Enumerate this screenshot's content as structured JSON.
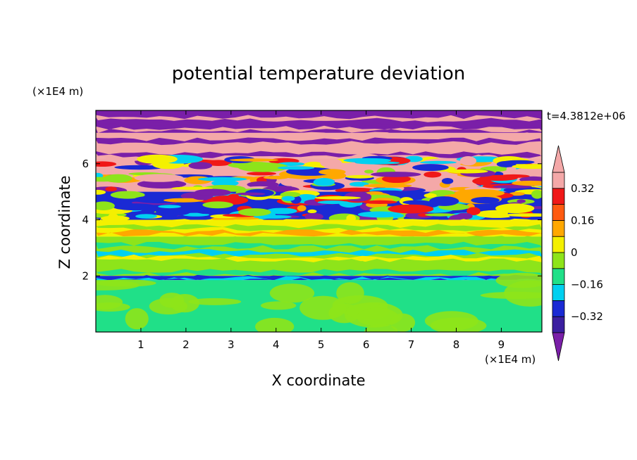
{
  "chart_data": {
    "type": "heatmap",
    "title": "potential temperature deviation",
    "xlabel": "X coordinate",
    "ylabel": "Z coordinate",
    "x_unit": "(×1E4 m)",
    "y_unit": "(×1E4 m)",
    "time_label": "t=4.3812e+06",
    "xlim": [
      0,
      9.9
    ],
    "ylim": [
      0,
      7.9
    ],
    "x_ticks": [
      1,
      2,
      3,
      4,
      5,
      6,
      7,
      8,
      9
    ],
    "y_ticks": [
      2,
      4,
      6
    ],
    "colorbar": {
      "levels": [
        -0.4,
        -0.32,
        -0.24,
        -0.16,
        -0.08,
        0,
        0.08,
        0.16,
        0.24,
        0.32,
        0.4
      ],
      "labels": [
        {
          "value": 0.32,
          "text": "0.32"
        },
        {
          "value": 0.16,
          "text": "0.16"
        },
        {
          "value": 0,
          "text": "0"
        },
        {
          "value": -0.16,
          "text": "−0.16"
        },
        {
          "value": -0.32,
          "text": "−0.32"
        }
      ],
      "colors": [
        "#7a1fa8",
        "#3b1fa0",
        "#1a2ad4",
        "#00d0f0",
        "#20e088",
        "#8ee41a",
        "#f4f000",
        "#ffa800",
        "#ff5a10",
        "#f01818",
        "#f4a8a8"
      ],
      "extend": "both"
    },
    "bands": [
      {
        "z": [
          7.1,
          7.9
        ],
        "pattern": "stripes",
        "colors": [
          "#7a1fa8",
          "#f4a8a8"
        ]
      },
      {
        "z": [
          6.2,
          7.1
        ],
        "pattern": "stripes",
        "colors": [
          "#f4a8a8",
          "#7a1fa8"
        ]
      },
      {
        "z": [
          5.0,
          6.2
        ],
        "pattern": "mixed",
        "colors": [
          "#f4a8a8",
          "#7a1fa8",
          "#1a2ad4",
          "#00d0f0",
          "#f01818",
          "#ffa800",
          "#f4f000",
          "#8ee41a"
        ]
      },
      {
        "z": [
          4.0,
          5.0
        ],
        "pattern": "mixed",
        "colors": [
          "#1a2ad4",
          "#7a1fa8",
          "#f4f000",
          "#f01818",
          "#00d0f0",
          "#8ee41a",
          "#ffa800"
        ]
      },
      {
        "z": [
          3.4,
          4.0
        ],
        "pattern": "stripes",
        "colors": [
          "#f4f000",
          "#8ee41a",
          "#ffa800",
          "#00d0f0"
        ]
      },
      {
        "z": [
          2.0,
          3.4
        ],
        "pattern": "stripes",
        "colors": [
          "#8ee41a",
          "#20e088",
          "#00d0f0",
          "#f4f000"
        ]
      },
      {
        "z": [
          1.85,
          2.0
        ],
        "pattern": "stripes",
        "colors": [
          "#1a2ad4",
          "#00d0f0"
        ]
      },
      {
        "z": [
          0,
          1.85
        ],
        "pattern": "blobs",
        "colors": [
          "#20e088",
          "#8ee41a"
        ]
      }
    ]
  }
}
